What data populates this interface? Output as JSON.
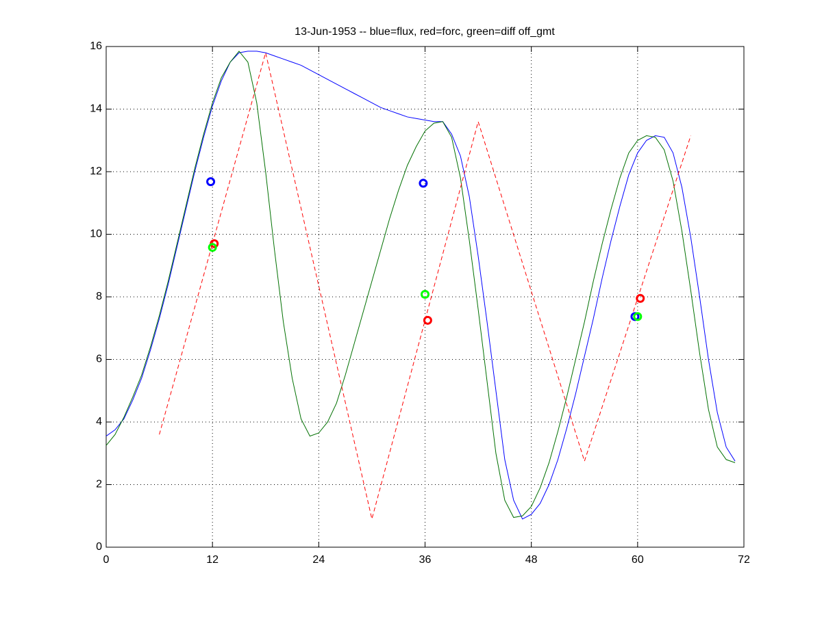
{
  "chart_data": {
    "type": "line",
    "title": "13-Jun-1953 -- blue=flux, red=forc, green=diff off_gmt",
    "x": [
      0,
      1,
      2,
      3,
      4,
      5,
      6,
      7,
      8,
      9,
      10,
      11,
      12,
      13,
      14,
      15,
      16,
      17,
      18,
      19,
      20,
      21,
      22,
      23,
      24,
      25,
      26,
      27,
      28,
      29,
      30,
      31,
      32,
      33,
      34,
      35,
      36,
      37,
      38,
      39,
      40,
      41,
      42,
      43,
      44,
      45,
      46,
      47,
      48,
      49,
      50,
      51,
      52,
      53,
      54,
      55,
      56,
      57,
      58,
      59,
      60,
      61,
      62,
      63,
      64,
      65,
      66,
      67,
      68,
      69,
      70,
      71
    ],
    "series": [
      {
        "color": "#0000ff",
        "style": "solid",
        "values": [
          3.55,
          3.75,
          4.1,
          4.7,
          5.4,
          6.3,
          7.3,
          8.4,
          9.6,
          10.8,
          12.0,
          13.1,
          14.1,
          14.9,
          15.5,
          15.8,
          15.85,
          15.85,
          15.8,
          15.7,
          15.6,
          15.5,
          15.4,
          15.25,
          15.1,
          14.95,
          14.8,
          14.65,
          14.5,
          14.35,
          14.2,
          14.05,
          13.95,
          13.85,
          13.75,
          13.7,
          13.65,
          13.6,
          13.6,
          13.2,
          12.5,
          11.2,
          9.3,
          7.2,
          5.0,
          2.8,
          1.5,
          0.9,
          1.05,
          1.4,
          2.0,
          2.8,
          3.8,
          4.9,
          6.1,
          7.3,
          8.6,
          9.8,
          10.9,
          11.9,
          12.6,
          13.0,
          13.15,
          13.1,
          12.6,
          11.5,
          9.9,
          8.0,
          6.0,
          4.3,
          3.2,
          2.75
        ]
      },
      {
        "color": "#007000",
        "style": "solid",
        "values": [
          3.25,
          3.6,
          4.15,
          4.8,
          5.5,
          6.4,
          7.4,
          8.5,
          9.7,
          10.9,
          12.1,
          13.2,
          14.2,
          15.0,
          15.5,
          15.85,
          15.5,
          14.2,
          12.0,
          9.5,
          7.2,
          5.4,
          4.1,
          3.55,
          3.65,
          4.0,
          4.6,
          5.5,
          6.5,
          7.5,
          8.5,
          9.5,
          10.5,
          11.4,
          12.2,
          12.8,
          13.3,
          13.55,
          13.6,
          13.1,
          11.8,
          9.8,
          7.6,
          5.3,
          3.0,
          1.5,
          0.95,
          1.0,
          1.3,
          1.9,
          2.7,
          3.7,
          4.8,
          6.0,
          7.2,
          8.5,
          9.7,
          10.8,
          11.8,
          12.6,
          13.0,
          13.15,
          13.1,
          12.7,
          11.7,
          10.1,
          8.2,
          6.2,
          4.4,
          3.2,
          2.8,
          2.7
        ]
      },
      {
        "color": "#ff0000",
        "style": "dashed",
        "x": [
          6,
          18,
          30,
          42,
          54,
          66
        ],
        "values": [
          3.6,
          15.8,
          0.9,
          13.6,
          2.75,
          13.15
        ]
      },
      {
        "color": "#0000ff",
        "style": "marker",
        "x": [
          11.8,
          35.8,
          59.7
        ],
        "values": [
          11.68,
          11.63,
          7.37
        ]
      },
      {
        "color": "#ff0000",
        "style": "marker",
        "x": [
          12.2,
          36.3,
          60.3
        ],
        "values": [
          9.7,
          7.25,
          7.95
        ]
      },
      {
        "color": "#00ff00",
        "style": "marker",
        "x": [
          12,
          36,
          60
        ],
        "values": [
          9.58,
          8.08,
          7.37
        ]
      }
    ],
    "xlim": [
      0,
      72
    ],
    "xticks": [
      0,
      12,
      24,
      36,
      48,
      60,
      72
    ],
    "ylim": [
      0,
      16
    ],
    "yticks": [
      0,
      2,
      4,
      6,
      8,
      10,
      12,
      14,
      16
    ],
    "grid": true
  }
}
